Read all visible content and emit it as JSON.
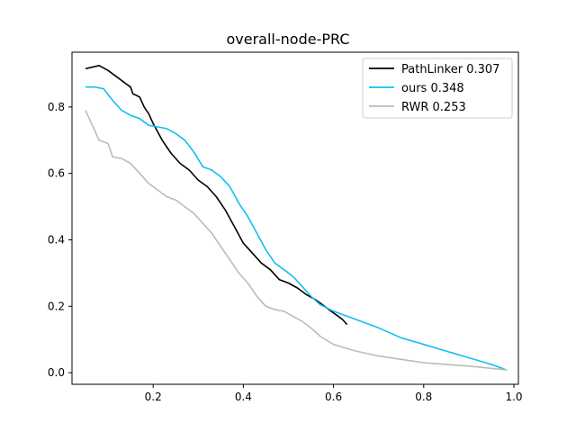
{
  "chart_data": {
    "type": "line",
    "title": "overall-node-PRC",
    "xlabel": "",
    "ylabel": "",
    "xlim": [
      0.02,
      1.01
    ],
    "ylim": [
      -0.035,
      0.965
    ],
    "xticks": [
      0.2,
      0.4,
      0.6,
      0.8,
      1.0
    ],
    "xtick_labels": [
      "0.2",
      "0.4",
      "0.6",
      "0.8",
      "1.0"
    ],
    "yticks": [
      0.0,
      0.2,
      0.4,
      0.6,
      0.8
    ],
    "ytick_labels": [
      "0.0",
      "0.2",
      "0.4",
      "0.6",
      "0.8"
    ],
    "grid": false,
    "legend_position": "top-right",
    "series": [
      {
        "name": "PathLinker 0.307",
        "color": "#000000",
        "x": [
          0.05,
          0.08,
          0.1,
          0.12,
          0.14,
          0.15,
          0.155,
          0.17,
          0.18,
          0.19,
          0.2,
          0.22,
          0.24,
          0.26,
          0.28,
          0.3,
          0.32,
          0.34,
          0.36,
          0.38,
          0.4,
          0.42,
          0.44,
          0.46,
          0.48,
          0.5,
          0.52,
          0.54,
          0.56,
          0.58,
          0.6,
          0.62,
          0.63
        ],
        "y": [
          0.915,
          0.925,
          0.91,
          0.89,
          0.87,
          0.86,
          0.84,
          0.83,
          0.8,
          0.78,
          0.75,
          0.7,
          0.66,
          0.63,
          0.61,
          0.58,
          0.56,
          0.53,
          0.49,
          0.44,
          0.39,
          0.36,
          0.33,
          0.31,
          0.28,
          0.27,
          0.255,
          0.235,
          0.22,
          0.2,
          0.18,
          0.16,
          0.145
        ]
      },
      {
        "name": "ours 0.348",
        "color": "#11bff0",
        "x": [
          0.05,
          0.07,
          0.09,
          0.11,
          0.13,
          0.15,
          0.17,
          0.19,
          0.21,
          0.23,
          0.25,
          0.27,
          0.29,
          0.31,
          0.33,
          0.35,
          0.37,
          0.39,
          0.41,
          0.43,
          0.45,
          0.47,
          0.49,
          0.51,
          0.53,
          0.55,
          0.57,
          0.6,
          0.65,
          0.7,
          0.75,
          0.8,
          0.85,
          0.9,
          0.95,
          0.98
        ],
        "y": [
          0.86,
          0.86,
          0.855,
          0.82,
          0.79,
          0.775,
          0.765,
          0.745,
          0.74,
          0.735,
          0.72,
          0.7,
          0.665,
          0.62,
          0.61,
          0.59,
          0.56,
          0.51,
          0.47,
          0.42,
          0.37,
          0.33,
          0.31,
          0.29,
          0.26,
          0.23,
          0.205,
          0.185,
          0.16,
          0.135,
          0.105,
          0.085,
          0.065,
          0.045,
          0.025,
          0.01
        ]
      },
      {
        "name": "RWR 0.253",
        "color": "#bbbbbb",
        "x": [
          0.05,
          0.06,
          0.07,
          0.08,
          0.1,
          0.11,
          0.13,
          0.15,
          0.17,
          0.19,
          0.21,
          0.23,
          0.25,
          0.27,
          0.29,
          0.31,
          0.33,
          0.35,
          0.37,
          0.39,
          0.41,
          0.43,
          0.45,
          0.47,
          0.49,
          0.51,
          0.53,
          0.55,
          0.57,
          0.6,
          0.65,
          0.7,
          0.75,
          0.8,
          0.85,
          0.9,
          0.95,
          0.985
        ],
        "y": [
          0.79,
          0.76,
          0.73,
          0.7,
          0.69,
          0.65,
          0.645,
          0.63,
          0.6,
          0.57,
          0.55,
          0.53,
          0.52,
          0.5,
          0.48,
          0.45,
          0.42,
          0.38,
          0.34,
          0.3,
          0.27,
          0.23,
          0.2,
          0.19,
          0.185,
          0.17,
          0.155,
          0.135,
          0.11,
          0.085,
          0.065,
          0.05,
          0.04,
          0.03,
          0.025,
          0.02,
          0.013,
          0.008
        ]
      }
    ]
  }
}
